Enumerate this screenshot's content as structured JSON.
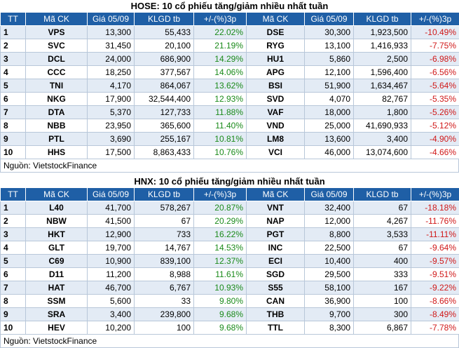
{
  "headers": [
    "TT",
    "Mã CK",
    "Giá 05/09",
    "KLGD tb",
    "+/-(%)3p",
    "Mã CK",
    "Giá 05/09",
    "KLGD tb",
    "+/-(%)3p"
  ],
  "source": "Nguồn: VietstockFinance",
  "colors": {
    "header_bg": "#1f5fa6",
    "row_tint": "#e3ebf5",
    "up": "#1a8a1a",
    "down": "#d01818"
  },
  "tables": [
    {
      "title": "HOSE: 10 cổ phiếu tăng/giảm nhiều nhất tuần",
      "rows": [
        {
          "tt": "1",
          "code1": "VPS",
          "price1": "13,300",
          "vol1": "55,433",
          "chg1": "22.02%",
          "code2": "DSE",
          "price2": "30,300",
          "vol2": "1,923,500",
          "chg2": "-10.49%"
        },
        {
          "tt": "2",
          "code1": "SVC",
          "price1": "31,450",
          "vol1": "20,100",
          "chg1": "21.19%",
          "code2": "RYG",
          "price2": "13,100",
          "vol2": "1,416,933",
          "chg2": "-7.75%"
        },
        {
          "tt": "3",
          "code1": "DCL",
          "price1": "24,000",
          "vol1": "686,900",
          "chg1": "14.29%",
          "code2": "HU1",
          "price2": "5,860",
          "vol2": "2,500",
          "chg2": "-6.98%"
        },
        {
          "tt": "4",
          "code1": "CCC",
          "price1": "18,250",
          "vol1": "377,567",
          "chg1": "14.06%",
          "code2": "APG",
          "price2": "12,100",
          "vol2": "1,596,400",
          "chg2": "-6.56%"
        },
        {
          "tt": "5",
          "code1": "TNI",
          "price1": "4,170",
          "vol1": "864,067",
          "chg1": "13.62%",
          "code2": "BSI",
          "price2": "51,900",
          "vol2": "1,634,467",
          "chg2": "-5.64%"
        },
        {
          "tt": "6",
          "code1": "NKG",
          "price1": "17,900",
          "vol1": "32,544,400",
          "chg1": "12.93%",
          "code2": "SVD",
          "price2": "4,070",
          "vol2": "82,767",
          "chg2": "-5.35%"
        },
        {
          "tt": "7",
          "code1": "DTA",
          "price1": "5,370",
          "vol1": "127,733",
          "chg1": "11.88%",
          "code2": "VAF",
          "price2": "18,000",
          "vol2": "1,800",
          "chg2": "-5.26%"
        },
        {
          "tt": "8",
          "code1": "NBB",
          "price1": "23,950",
          "vol1": "365,600",
          "chg1": "11.40%",
          "code2": "VND",
          "price2": "25,000",
          "vol2": "41,690,933",
          "chg2": "-5.12%"
        },
        {
          "tt": "9",
          "code1": "PTL",
          "price1": "3,690",
          "vol1": "255,167",
          "chg1": "10.81%",
          "code2": "LM8",
          "price2": "13,600",
          "vol2": "3,400",
          "chg2": "-4.90%"
        },
        {
          "tt": "10",
          "code1": "HHS",
          "price1": "17,500",
          "vol1": "8,863,433",
          "chg1": "10.76%",
          "code2": "VCI",
          "price2": "46,000",
          "vol2": "13,074,600",
          "chg2": "-4.66%"
        }
      ]
    },
    {
      "title": "HNX: 10 cổ phiếu tăng/giảm nhiều nhất tuần",
      "rows": [
        {
          "tt": "1",
          "code1": "L40",
          "price1": "41,700",
          "vol1": "578,267",
          "chg1": "20.87%",
          "code2": "VNT",
          "price2": "32,400",
          "vol2": "67",
          "chg2": "-18.18%"
        },
        {
          "tt": "2",
          "code1": "NBW",
          "price1": "41,500",
          "vol1": "67",
          "chg1": "20.29%",
          "code2": "NAP",
          "price2": "12,000",
          "vol2": "4,267",
          "chg2": "-11.76%"
        },
        {
          "tt": "3",
          "code1": "HKT",
          "price1": "12,900",
          "vol1": "733",
          "chg1": "16.22%",
          "code2": "PGT",
          "price2": "8,800",
          "vol2": "3,533",
          "chg2": "-11.11%"
        },
        {
          "tt": "4",
          "code1": "GLT",
          "price1": "19,700",
          "vol1": "14,767",
          "chg1": "14.53%",
          "code2": "INC",
          "price2": "22,500",
          "vol2": "67",
          "chg2": "-9.64%"
        },
        {
          "tt": "5",
          "code1": "C69",
          "price1": "10,900",
          "vol1": "839,100",
          "chg1": "12.37%",
          "code2": "ECI",
          "price2": "10,400",
          "vol2": "400",
          "chg2": "-9.57%"
        },
        {
          "tt": "6",
          "code1": "D11",
          "price1": "11,200",
          "vol1": "8,988",
          "chg1": "11.61%",
          "code2": "SGD",
          "price2": "29,500",
          "vol2": "333",
          "chg2": "-9.51%"
        },
        {
          "tt": "7",
          "code1": "HAT",
          "price1": "46,700",
          "vol1": "6,767",
          "chg1": "10.93%",
          "code2": "S55",
          "price2": "58,100",
          "vol2": "167",
          "chg2": "-9.22%"
        },
        {
          "tt": "8",
          "code1": "SSM",
          "price1": "5,600",
          "vol1": "33",
          "chg1": "9.80%",
          "code2": "CAN",
          "price2": "36,900",
          "vol2": "100",
          "chg2": "-8.66%"
        },
        {
          "tt": "9",
          "code1": "SRA",
          "price1": "3,400",
          "vol1": "239,800",
          "chg1": "9.68%",
          "code2": "THB",
          "price2": "9,700",
          "vol2": "300",
          "chg2": "-8.49%"
        },
        {
          "tt": "10",
          "code1": "HEV",
          "price1": "10,200",
          "vol1": "100",
          "chg1": "9.68%",
          "code2": "TTL",
          "price2": "8,300",
          "vol2": "6,867",
          "chg2": "-7.78%"
        }
      ]
    }
  ]
}
